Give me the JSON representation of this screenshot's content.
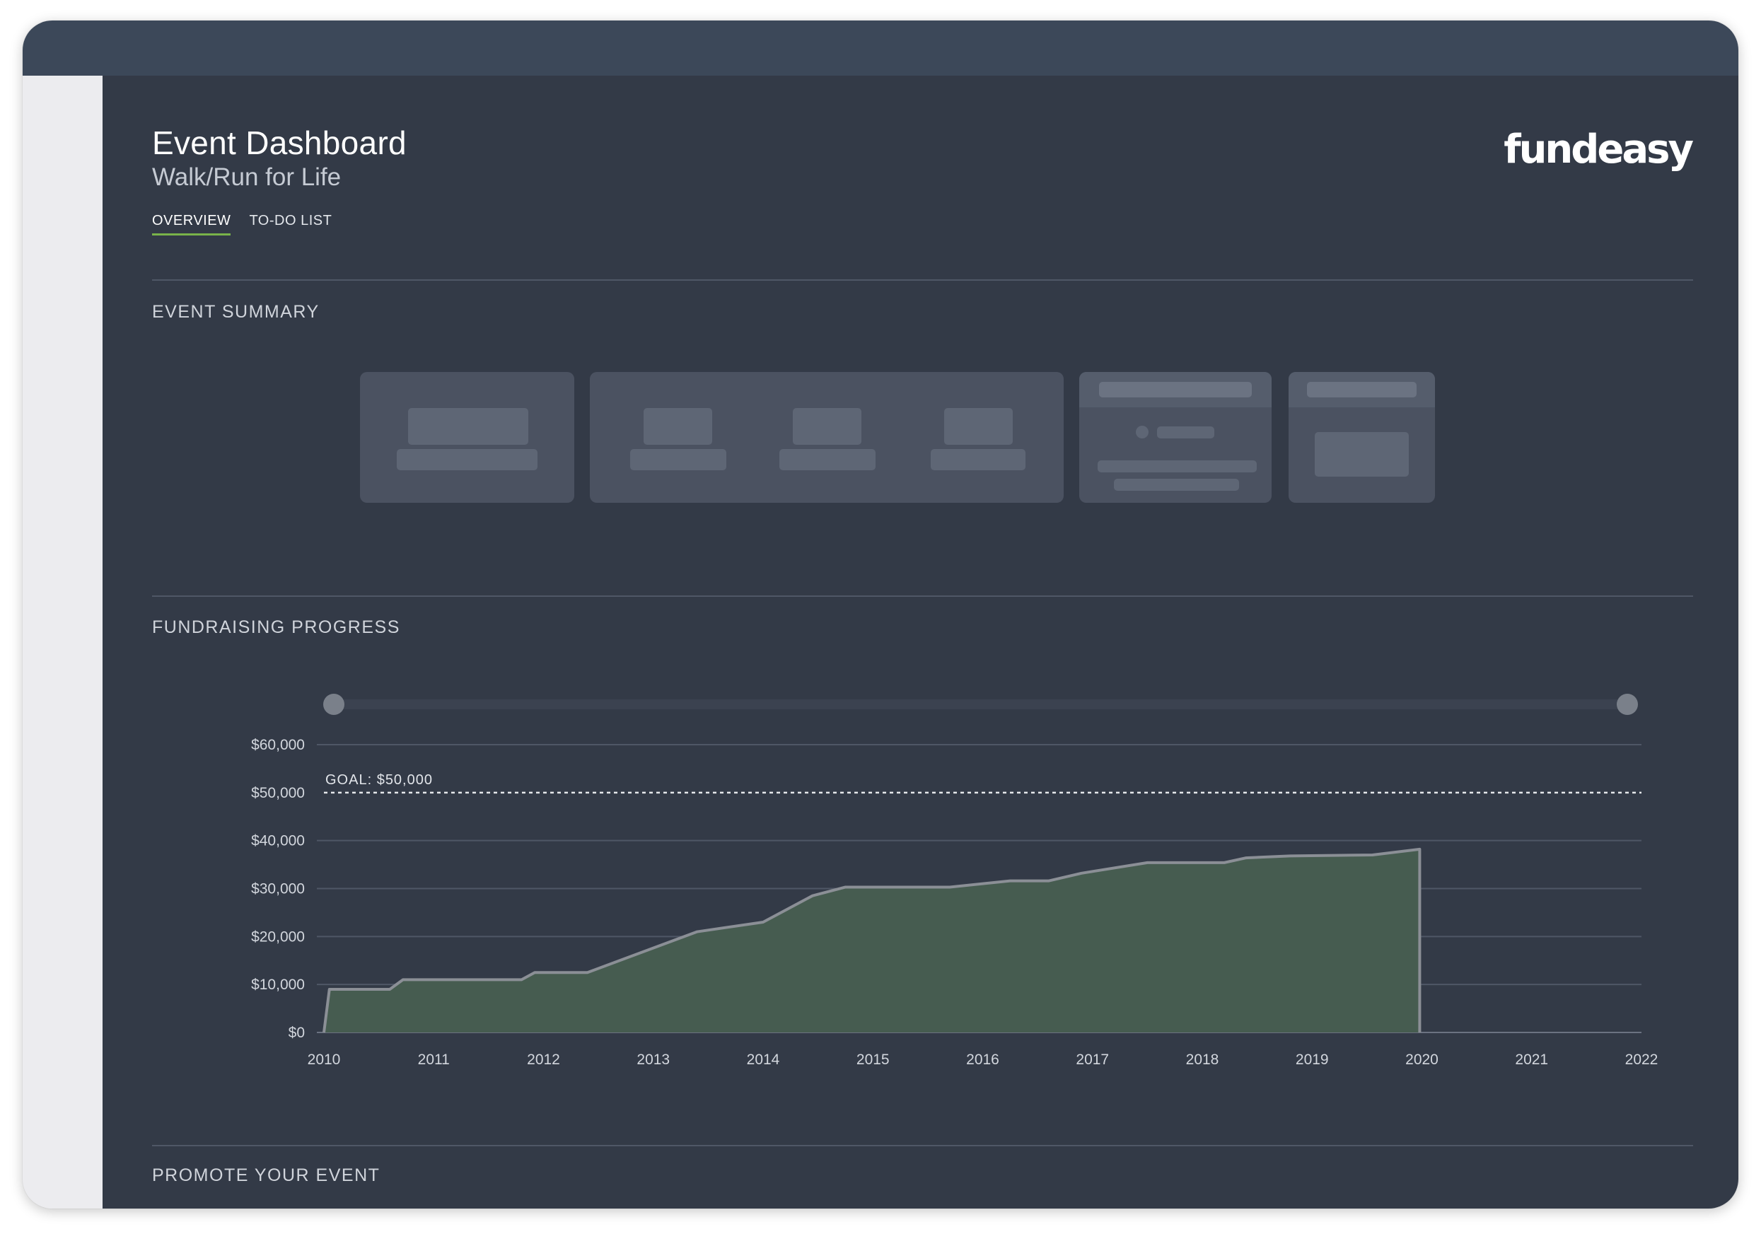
{
  "header": {
    "title": "Event Dashboard",
    "subtitle": "Walk/Run for Life",
    "logo_text": "fundeasy"
  },
  "tabs": [
    {
      "label": "OVERVIEW",
      "active": true
    },
    {
      "label": "TO-DO LIST",
      "active": false
    }
  ],
  "sections": {
    "event_summary": "EVENT SUMMARY",
    "fundraising_progress": "FUNDRAISING PROGRESS",
    "promote_event": "PROMOTE YOUR EVENT"
  },
  "colors": {
    "background": "#333a47",
    "topbar": "#3c4859",
    "area_fill": "#465c50",
    "area_stroke": "#8b8f96",
    "accent": "#79b34a"
  },
  "chart_data": {
    "type": "area",
    "title": "",
    "xlabel": "",
    "ylabel": "",
    "goal": {
      "label": "GOAL: $50,000",
      "value": 50000
    },
    "xlim": [
      2010,
      2022
    ],
    "ylim": [
      0,
      60000
    ],
    "x_ticks": [
      "2010",
      "2011",
      "2012",
      "2013",
      "2014",
      "2015",
      "2016",
      "2017",
      "2018",
      "2019",
      "2020",
      "2021",
      "2022"
    ],
    "y_ticks": [
      "$0",
      "$10,000",
      "$20,000",
      "$30,000",
      "$40,000",
      "$50,000",
      "$60,000"
    ],
    "range_slider": {
      "start": 2010,
      "end": 2022
    },
    "series": [
      {
        "x": [
          2010.0,
          2010.05,
          2010.6,
          2010.72,
          2011.8,
          2011.92,
          2012.4,
          2013.4,
          2014.0,
          2014.45,
          2014.75,
          2015.7,
          2016.25,
          2016.6,
          2016.9,
          2017.5,
          2018.2,
          2018.4,
          2018.8,
          2019.55,
          2019.98
        ],
        "y": [
          0,
          9000,
          9000,
          11000,
          11000,
          12500,
          12500,
          21000,
          23000,
          28500,
          30300,
          30300,
          31600,
          31600,
          33200,
          35400,
          35400,
          36400,
          36800,
          37000,
          38200
        ]
      }
    ]
  }
}
